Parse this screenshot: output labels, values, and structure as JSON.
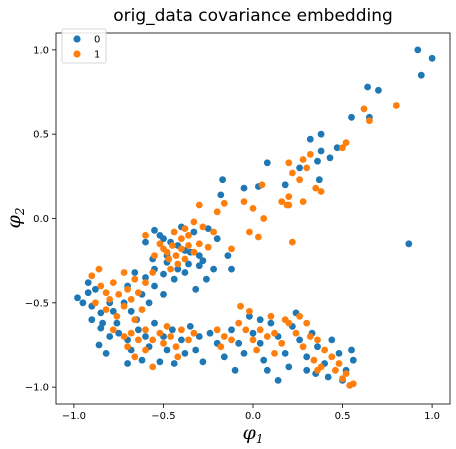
{
  "chart_data": {
    "type": "scatter",
    "title": "orig_data covariance embedding",
    "xlabel": "φ",
    "xlabel_sub": "1",
    "ylabel": "φ",
    "ylabel_sub": "2",
    "xlim": [
      -1.1,
      1.1
    ],
    "ylim": [
      -1.1,
      1.1
    ],
    "xticks": [
      -1.0,
      -0.5,
      0.0,
      0.5,
      1.0
    ],
    "xtick_labels": [
      "−1.0",
      "−0.5",
      "0.0",
      "0.5",
      "1.0"
    ],
    "yticks": [
      -1.0,
      -0.5,
      0.0,
      0.5,
      1.0
    ],
    "ytick_labels": [
      "−1.0",
      "−0.5",
      "0.0",
      "0.5",
      "1.0"
    ],
    "grid": false,
    "legend_position": "top-left",
    "series": [
      {
        "name": "0",
        "color": "#1f77b4",
        "points": [
          [
            0.92,
            1.0
          ],
          [
            1.0,
            0.95
          ],
          [
            0.94,
            0.85
          ],
          [
            0.64,
            0.78
          ],
          [
            0.7,
            0.76
          ],
          [
            0.87,
            -0.15
          ],
          [
            0.55,
            0.6
          ],
          [
            0.65,
            0.6
          ],
          [
            0.38,
            0.5
          ],
          [
            0.32,
            0.47
          ],
          [
            0.47,
            0.42
          ],
          [
            0.38,
            0.4
          ],
          [
            0.43,
            0.36
          ],
          [
            0.36,
            0.34
          ],
          [
            0.08,
            0.33
          ],
          [
            0.26,
            0.3
          ],
          [
            0.18,
            0.2
          ],
          [
            0.37,
            0.23
          ],
          [
            0.03,
            0.19
          ],
          [
            -0.17,
            0.23
          ],
          [
            -0.18,
            0.14
          ],
          [
            -0.05,
            0.18
          ],
          [
            -0.55,
            -0.07
          ],
          [
            -0.52,
            -0.1
          ],
          [
            -0.5,
            -0.12
          ],
          [
            -0.46,
            -0.14
          ],
          [
            -0.42,
            -0.16
          ],
          [
            -0.38,
            -0.19
          ],
          [
            -0.35,
            -0.2
          ],
          [
            -0.3,
            -0.22
          ],
          [
            -0.48,
            -0.26
          ],
          [
            -0.42,
            -0.3
          ],
          [
            -0.36,
            -0.27
          ],
          [
            -0.3,
            -0.28
          ],
          [
            -0.5,
            -0.33
          ],
          [
            -0.44,
            -0.36
          ],
          [
            -0.38,
            -0.32
          ],
          [
            -0.28,
            -0.25
          ],
          [
            -0.22,
            -0.3
          ],
          [
            -0.55,
            -0.3
          ],
          [
            -0.6,
            -0.14
          ],
          [
            -0.4,
            -0.05
          ],
          [
            -0.33,
            -0.08
          ],
          [
            -0.25,
            -0.06
          ],
          [
            -0.2,
            -0.12
          ],
          [
            -0.14,
            -0.22
          ],
          [
            -0.12,
            -0.3
          ],
          [
            -0.26,
            -0.36
          ],
          [
            -0.32,
            -0.42
          ],
          [
            -0.48,
            -0.22
          ],
          [
            -0.56,
            -0.24
          ],
          [
            -0.98,
            -0.47
          ],
          [
            -0.95,
            -0.5
          ],
          [
            -0.92,
            -0.44
          ],
          [
            -0.9,
            -0.52
          ],
          [
            -0.88,
            -0.42
          ],
          [
            -0.85,
            -0.56
          ],
          [
            -0.8,
            -0.5
          ],
          [
            -0.78,
            -0.55
          ],
          [
            -0.72,
            -0.5
          ],
          [
            -0.68,
            -0.55
          ],
          [
            -0.65,
            -0.6
          ],
          [
            -0.62,
            -0.45
          ],
          [
            -0.58,
            -0.5
          ],
          [
            -0.9,
            -0.6
          ],
          [
            -0.84,
            -0.62
          ],
          [
            -0.76,
            -0.62
          ],
          [
            -0.7,
            -0.4
          ],
          [
            -0.66,
            -0.32
          ],
          [
            -0.6,
            -0.35
          ],
          [
            -0.55,
            -0.4
          ],
          [
            -0.5,
            -0.45
          ],
          [
            -0.92,
            -0.38
          ],
          [
            -0.85,
            -0.65
          ],
          [
            -0.8,
            -0.7
          ],
          [
            -0.75,
            -0.68
          ],
          [
            -0.7,
            -0.72
          ],
          [
            -0.68,
            -0.78
          ],
          [
            -0.64,
            -0.66
          ],
          [
            -0.6,
            -0.7
          ],
          [
            -0.58,
            -0.76
          ],
          [
            -0.55,
            -0.62
          ],
          [
            -0.5,
            -0.7
          ],
          [
            -0.48,
            -0.78
          ],
          [
            -0.45,
            -0.66
          ],
          [
            -0.4,
            -0.72
          ],
          [
            -0.38,
            -0.8
          ],
          [
            -0.35,
            -0.64
          ],
          [
            -0.3,
            -0.7
          ],
          [
            -0.62,
            -0.84
          ],
          [
            -0.7,
            -0.86
          ],
          [
            -0.82,
            -0.8
          ],
          [
            -0.86,
            -0.75
          ],
          [
            -0.52,
            -0.85
          ],
          [
            -0.44,
            -0.86
          ],
          [
            -0.32,
            -0.78
          ],
          [
            -0.28,
            -0.85
          ],
          [
            -0.24,
            -0.68
          ],
          [
            -0.2,
            -0.74
          ],
          [
            -0.16,
            -0.82
          ],
          [
            -0.12,
            -0.66
          ],
          [
            -0.08,
            -0.74
          ],
          [
            -0.05,
            -0.8
          ],
          [
            0.0,
            -0.68
          ],
          [
            0.04,
            -0.74
          ],
          [
            0.06,
            -0.84
          ],
          [
            0.1,
            -0.62
          ],
          [
            0.14,
            -0.7
          ],
          [
            0.18,
            -0.8
          ],
          [
            0.22,
            -0.64
          ],
          [
            0.26,
            -0.72
          ],
          [
            0.3,
            -0.82
          ],
          [
            0.33,
            -0.68
          ],
          [
            0.36,
            -0.76
          ],
          [
            0.4,
            -0.86
          ],
          [
            0.44,
            -0.72
          ],
          [
            0.48,
            -0.8
          ],
          [
            0.52,
            -0.9
          ],
          [
            0.56,
            -0.84
          ],
          [
            0.08,
            -0.9
          ],
          [
            0.14,
            -0.96
          ],
          [
            -0.02,
            -0.58
          ],
          [
            0.04,
            -0.6
          ],
          [
            0.24,
            -0.56
          ],
          [
            0.3,
            -0.9
          ],
          [
            0.42,
            -0.94
          ],
          [
            0.5,
            -0.96
          ],
          [
            0.55,
            -0.78
          ],
          [
            0.35,
            -0.92
          ],
          [
            0.2,
            -0.88
          ],
          [
            -0.1,
            -0.9
          ]
        ]
      },
      {
        "name": "1",
        "color": "#ff7f0e",
        "points": [
          [
            0.8,
            0.67
          ],
          [
            0.62,
            0.65
          ],
          [
            0.65,
            0.58
          ],
          [
            0.52,
            0.45
          ],
          [
            0.5,
            0.42
          ],
          [
            0.28,
            0.35
          ],
          [
            0.32,
            0.38
          ],
          [
            0.2,
            0.33
          ],
          [
            0.22,
            0.27
          ],
          [
            0.3,
            0.3
          ],
          [
            0.26,
            0.23
          ],
          [
            0.35,
            0.18
          ],
          [
            0.05,
            0.2
          ],
          [
            0.2,
            0.13
          ],
          [
            0.16,
            0.1
          ],
          [
            0.28,
            0.1
          ],
          [
            0.38,
            0.16
          ],
          [
            0.2,
            0.08
          ],
          [
            -0.05,
            0.1
          ],
          [
            0.0,
            0.06
          ],
          [
            -0.16,
            0.09
          ],
          [
            -0.3,
            0.08
          ],
          [
            -0.33,
            -0.02
          ],
          [
            -0.28,
            -0.05
          ],
          [
            -0.22,
            -0.08
          ],
          [
            0.19,
            0.08
          ],
          [
            0.06,
            0.0
          ],
          [
            -0.2,
            0.04
          ],
          [
            -0.02,
            -0.08
          ],
          [
            0.03,
            -0.11
          ],
          [
            0.22,
            -0.14
          ],
          [
            -0.52,
            -0.15
          ],
          [
            -0.5,
            -0.18
          ],
          [
            -0.48,
            -0.2
          ],
          [
            -0.45,
            -0.16
          ],
          [
            -0.43,
            -0.22
          ],
          [
            -0.4,
            -0.18
          ],
          [
            -0.38,
            -0.24
          ],
          [
            -0.36,
            -0.16
          ],
          [
            -0.33,
            -0.2
          ],
          [
            -0.47,
            -0.24
          ],
          [
            -0.42,
            -0.27
          ],
          [
            -0.4,
            -0.12
          ],
          [
            -0.36,
            -0.1
          ],
          [
            -0.3,
            -0.15
          ],
          [
            -0.55,
            -0.22
          ],
          [
            -0.6,
            -0.1
          ],
          [
            -0.44,
            -0.08
          ],
          [
            -0.25,
            -0.17
          ],
          [
            -0.12,
            -0.18
          ],
          [
            -0.46,
            -0.3
          ],
          [
            -0.38,
            -0.06
          ],
          [
            -0.9,
            -0.34
          ],
          [
            -0.85,
            -0.4
          ],
          [
            -0.82,
            -0.44
          ],
          [
            -0.8,
            -0.48
          ],
          [
            -0.78,
            -0.38
          ],
          [
            -0.75,
            -0.45
          ],
          [
            -0.72,
            -0.52
          ],
          [
            -0.7,
            -0.42
          ],
          [
            -0.68,
            -0.48
          ],
          [
            -0.66,
            -0.36
          ],
          [
            -0.64,
            -0.44
          ],
          [
            -0.82,
            -0.54
          ],
          [
            -0.76,
            -0.58
          ],
          [
            -0.88,
            -0.5
          ],
          [
            -0.6,
            -0.38
          ],
          [
            -0.56,
            -0.32
          ],
          [
            -0.86,
            -0.3
          ],
          [
            -0.72,
            -0.32
          ],
          [
            -0.66,
            -0.6
          ],
          [
            -0.62,
            -0.54
          ],
          [
            -0.78,
            -0.66
          ],
          [
            -0.72,
            -0.7
          ],
          [
            -0.68,
            -0.68
          ],
          [
            -0.64,
            -0.72
          ],
          [
            -0.6,
            -0.66
          ],
          [
            -0.56,
            -0.72
          ],
          [
            -0.52,
            -0.68
          ],
          [
            -0.5,
            -0.74
          ],
          [
            -0.46,
            -0.7
          ],
          [
            -0.43,
            -0.76
          ],
          [
            -0.4,
            -0.66
          ],
          [
            -0.36,
            -0.72
          ],
          [
            -0.33,
            -0.68
          ],
          [
            -0.7,
            -0.76
          ],
          [
            -0.66,
            -0.82
          ],
          [
            -0.6,
            -0.78
          ],
          [
            -0.56,
            -0.88
          ],
          [
            -0.48,
            -0.64
          ],
          [
            -0.42,
            -0.82
          ],
          [
            -0.2,
            -0.66
          ],
          [
            -0.16,
            -0.7
          ],
          [
            -0.12,
            -0.72
          ],
          [
            -0.08,
            -0.62
          ],
          [
            -0.04,
            -0.66
          ],
          [
            0.0,
            -0.72
          ],
          [
            0.04,
            -0.66
          ],
          [
            0.08,
            -0.7
          ],
          [
            0.12,
            -0.68
          ],
          [
            0.16,
            -0.74
          ],
          [
            0.2,
            -0.62
          ],
          [
            0.24,
            -0.68
          ],
          [
            0.28,
            -0.76
          ],
          [
            0.32,
            -0.7
          ],
          [
            0.36,
            -0.72
          ],
          [
            0.4,
            -0.78
          ],
          [
            0.44,
            -0.82
          ],
          [
            0.48,
            -0.86
          ],
          [
            0.52,
            -0.92
          ],
          [
            0.56,
            -0.98
          ],
          [
            0.54,
            -0.99
          ],
          [
            0.5,
            -0.95
          ],
          [
            0.46,
            -0.9
          ],
          [
            0.38,
            -0.88
          ],
          [
            0.34,
            -0.84
          ],
          [
            -0.07,
            -0.52
          ],
          [
            -0.02,
            -0.55
          ],
          [
            0.1,
            -0.58
          ],
          [
            0.18,
            -0.6
          ],
          [
            0.26,
            -0.58
          ],
          [
            0.3,
            -0.62
          ],
          [
            0.02,
            -0.78
          ],
          [
            0.12,
            -0.8
          ],
          [
            0.36,
            -0.9
          ],
          [
            -0.18,
            -0.76
          ]
        ]
      }
    ]
  }
}
